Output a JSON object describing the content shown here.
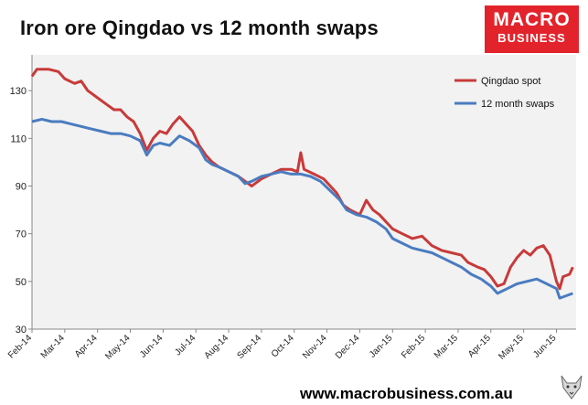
{
  "title": "Iron ore Qingdao vs 12 month swaps",
  "logo": {
    "line1": "MACRO",
    "line2": "BUSINESS"
  },
  "footer": "www.macrobusiness.com.au",
  "colors": {
    "qingdao": "#c83a3a",
    "swaps": "#4a7cc0",
    "plot_bg": "#f2f2f2",
    "brand": "#e3232b"
  },
  "chart_data": {
    "type": "line",
    "title": "Iron ore Qingdao vs 12 month swaps",
    "xlabel": "",
    "ylabel": "",
    "ylim": [
      30,
      145
    ],
    "yticks": [
      30,
      50,
      70,
      90,
      110,
      130
    ],
    "xlim": [
      0,
      16.6
    ],
    "xtick_labels": [
      "Feb-14",
      "Mar-14",
      "Apr-14",
      "May-14",
      "Jun-14",
      "Jul-14",
      "Aug-14",
      "Sep-14",
      "Oct-14",
      "Nov-14",
      "Dec-14",
      "Jan-15",
      "Feb-15",
      "Mar-15",
      "Apr-15",
      "May-15",
      "Jun-15"
    ],
    "legend": "top-right",
    "series": [
      {
        "name": "Qingdao spot",
        "points": [
          [
            0,
            136
          ],
          [
            0.15,
            139
          ],
          [
            0.5,
            139
          ],
          [
            0.8,
            138
          ],
          [
            1.0,
            135
          ],
          [
            1.3,
            133
          ],
          [
            1.5,
            134
          ],
          [
            1.7,
            130
          ],
          [
            2.0,
            127
          ],
          [
            2.3,
            124
          ],
          [
            2.5,
            122
          ],
          [
            2.7,
            122
          ],
          [
            2.9,
            119
          ],
          [
            3.1,
            117
          ],
          [
            3.3,
            112
          ],
          [
            3.5,
            105
          ],
          [
            3.7,
            110
          ],
          [
            3.9,
            113
          ],
          [
            4.1,
            112
          ],
          [
            4.3,
            116
          ],
          [
            4.5,
            119
          ],
          [
            4.7,
            116
          ],
          [
            4.9,
            113
          ],
          [
            5.1,
            107
          ],
          [
            5.3,
            103
          ],
          [
            5.5,
            100
          ],
          [
            5.7,
            98
          ],
          [
            6.0,
            96
          ],
          [
            6.3,
            94
          ],
          [
            6.5,
            92
          ],
          [
            6.7,
            90
          ],
          [
            7.0,
            93
          ],
          [
            7.3,
            95
          ],
          [
            7.6,
            97
          ],
          [
            7.9,
            97
          ],
          [
            8.1,
            96
          ],
          [
            8.2,
            104
          ],
          [
            8.3,
            97
          ],
          [
            8.6,
            95
          ],
          [
            8.9,
            93
          ],
          [
            9.1,
            90
          ],
          [
            9.3,
            87
          ],
          [
            9.5,
            82
          ],
          [
            9.7,
            80
          ],
          [
            10.0,
            78
          ],
          [
            10.2,
            84
          ],
          [
            10.4,
            80
          ],
          [
            10.6,
            78
          ],
          [
            10.8,
            75
          ],
          [
            11.0,
            72
          ],
          [
            11.3,
            70
          ],
          [
            11.6,
            68
          ],
          [
            11.9,
            69
          ],
          [
            12.2,
            65
          ],
          [
            12.5,
            63
          ],
          [
            12.8,
            62
          ],
          [
            13.1,
            61
          ],
          [
            13.3,
            58
          ],
          [
            13.6,
            56
          ],
          [
            13.8,
            55
          ],
          [
            14.0,
            52
          ],
          [
            14.2,
            48
          ],
          [
            14.4,
            49
          ],
          [
            14.6,
            56
          ],
          [
            14.8,
            60
          ],
          [
            15.0,
            63
          ],
          [
            15.2,
            61
          ],
          [
            15.4,
            64
          ],
          [
            15.6,
            65
          ],
          [
            15.8,
            61
          ],
          [
            16.0,
            50
          ],
          [
            16.1,
            47
          ],
          [
            16.2,
            52
          ],
          [
            16.4,
            53
          ],
          [
            16.5,
            56
          ]
        ]
      },
      {
        "name": "12 month swaps",
        "points": [
          [
            0,
            117
          ],
          [
            0.3,
            118
          ],
          [
            0.6,
            117
          ],
          [
            0.9,
            117
          ],
          [
            1.2,
            116
          ],
          [
            1.5,
            115
          ],
          [
            1.8,
            114
          ],
          [
            2.1,
            113
          ],
          [
            2.4,
            112
          ],
          [
            2.7,
            112
          ],
          [
            3.0,
            111
          ],
          [
            3.3,
            109
          ],
          [
            3.5,
            103
          ],
          [
            3.7,
            107
          ],
          [
            3.9,
            108
          ],
          [
            4.2,
            107
          ],
          [
            4.5,
            111
          ],
          [
            4.8,
            109
          ],
          [
            5.1,
            106
          ],
          [
            5.3,
            101
          ],
          [
            5.5,
            99
          ],
          [
            5.7,
            98
          ],
          [
            6.0,
            96
          ],
          [
            6.3,
            94
          ],
          [
            6.5,
            91
          ],
          [
            6.7,
            92
          ],
          [
            7.0,
            94
          ],
          [
            7.3,
            95
          ],
          [
            7.6,
            96
          ],
          [
            7.9,
            95
          ],
          [
            8.2,
            95
          ],
          [
            8.5,
            94
          ],
          [
            8.8,
            92
          ],
          [
            9.1,
            88
          ],
          [
            9.4,
            84
          ],
          [
            9.6,
            80
          ],
          [
            9.9,
            78
          ],
          [
            10.2,
            77
          ],
          [
            10.5,
            75
          ],
          [
            10.8,
            72
          ],
          [
            11.0,
            68
          ],
          [
            11.3,
            66
          ],
          [
            11.6,
            64
          ],
          [
            11.9,
            63
          ],
          [
            12.2,
            62
          ],
          [
            12.5,
            60
          ],
          [
            12.8,
            58
          ],
          [
            13.1,
            56
          ],
          [
            13.4,
            53
          ],
          [
            13.7,
            51
          ],
          [
            14.0,
            48
          ],
          [
            14.2,
            45
          ],
          [
            14.5,
            47
          ],
          [
            14.8,
            49
          ],
          [
            15.1,
            50
          ],
          [
            15.4,
            51
          ],
          [
            15.7,
            49
          ],
          [
            16.0,
            47
          ],
          [
            16.1,
            43
          ],
          [
            16.3,
            44
          ],
          [
            16.5,
            45
          ]
        ]
      }
    ]
  }
}
